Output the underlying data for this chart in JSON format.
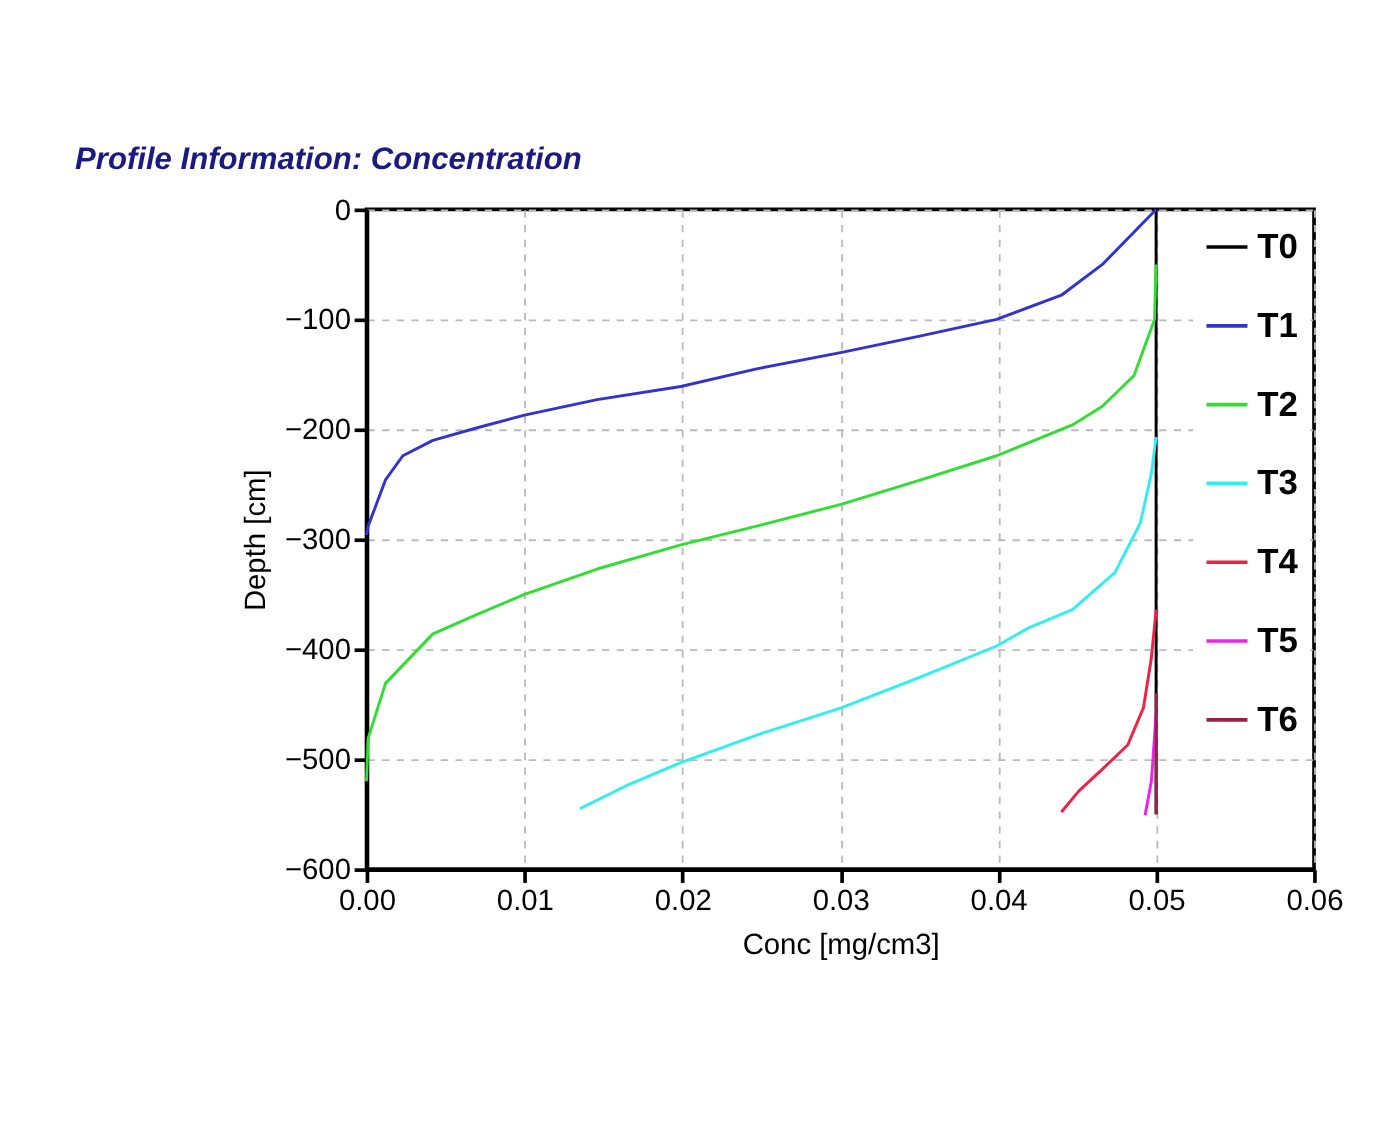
{
  "chart_data": {
    "type": "line",
    "title": "Profile Information:  Concentration",
    "xlabel": "Conc [mg/cm3]",
    "ylabel": "Depth [cm]",
    "xlim": [
      0,
      0.06
    ],
    "xticks": [
      {
        "value": 0,
        "label": "0.00"
      },
      0.01,
      0.02,
      0.03,
      0.04,
      0.05,
      0.06
    ],
    "ylim": [
      -600,
      0
    ],
    "yticks": [
      -600,
      -500,
      -400,
      -300,
      -200,
      -100,
      0
    ],
    "grid": true,
    "legend": "top right",
    "marker": "none",
    "line_style": "solid",
    "series": [
      {
        "name": "T0",
        "color": "#000000",
        "x": [
          0.05,
          0.05
        ],
        "values": [
          0,
          -550
        ]
      },
      {
        "name": "T1",
        "color": "#3333cc",
        "x": [
          0.05,
          0.0466,
          0.044,
          0.0399,
          0.0351,
          0.0301,
          0.0247,
          0.0199,
          0.0146,
          0.01,
          0.0069,
          0.0042,
          0.0023,
          0.0012,
          0.0001,
          0
        ],
        "values": [
          0,
          -50,
          -78,
          -100,
          -115,
          -130,
          -145,
          -161,
          -173,
          -187,
          -199,
          -210,
          -224,
          -246,
          -288,
          -296
        ]
      },
      {
        "name": "T2",
        "color": "#33dd33",
        "x": [
          0.05,
          0.0499,
          0.0486,
          0.0466,
          0.0447,
          0.0399,
          0.0351,
          0.0301,
          0.0247,
          0.0199,
          0.0146,
          0.01,
          0.0069,
          0.0042,
          0.0012,
          0.0001,
          0
        ],
        "values": [
          -50,
          -100,
          -151,
          -179,
          -196,
          -224,
          -246,
          -268,
          -288,
          -305,
          -327,
          -350,
          -369,
          -386,
          -431,
          -481,
          -520
        ]
      },
      {
        "name": "T3",
        "color": "#33eeee",
        "x": [
          0.05,
          0.0497,
          0.049,
          0.0474,
          0.0447,
          0.042,
          0.0399,
          0.0351,
          0.0301,
          0.0247,
          0.0199,
          0.0166,
          0.0135
        ],
        "values": [
          -207,
          -240,
          -285,
          -330,
          -364,
          -380,
          -397,
          -425,
          -453,
          -478,
          -503,
          -523,
          -545
        ]
      },
      {
        "name": "T4",
        "color": "#ee2244",
        "x": [
          0.05,
          0.0497,
          0.0492,
          0.0482,
          0.0466,
          0.0451,
          0.044
        ],
        "values": [
          -364,
          -408,
          -453,
          -487,
          -509,
          -529,
          -548
        ]
      },
      {
        "name": "T5",
        "color": "#ee22ee",
        "x": [
          0.05,
          0.0497,
          0.0493
        ],
        "values": [
          -459,
          -520,
          -551
        ]
      },
      {
        "name": "T6",
        "color": "#992244",
        "x": [
          0.05,
          0.05
        ],
        "values": [
          -440,
          -550
        ]
      }
    ]
  }
}
